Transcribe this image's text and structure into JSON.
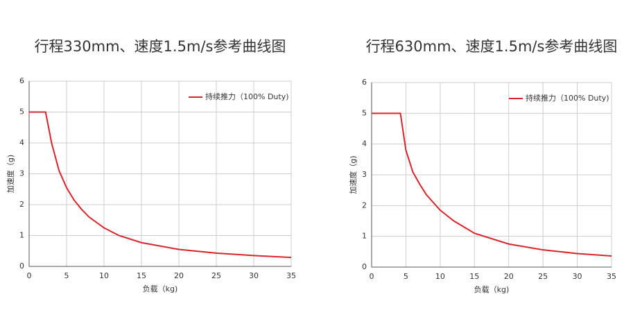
{
  "chart_data": [
    {
      "type": "line",
      "title": "行程330mm、速度1.5m/s参考曲线图",
      "x_label": "负载（kg)",
      "y_label": "加速度（g)",
      "x": [
        0,
        2.2,
        3,
        4,
        5,
        6,
        7,
        8,
        10,
        12,
        15,
        20,
        25,
        30,
        35
      ],
      "series": [
        {
          "name": "持续推力（100% Duty)",
          "color": "#d9232a",
          "values": [
            5,
            5,
            4.0,
            3.1,
            2.55,
            2.15,
            1.85,
            1.6,
            1.25,
            1.0,
            0.77,
            0.55,
            0.43,
            0.35,
            0.29
          ]
        }
      ],
      "xlim": [
        0,
        35
      ],
      "ylim": [
        0,
        6
      ],
      "xticks": [
        0,
        5,
        10,
        15,
        20,
        25,
        30,
        35
      ],
      "yticks": [
        0,
        1,
        2,
        3,
        4,
        5,
        6
      ],
      "grid": true,
      "legend": "upper right"
    },
    {
      "type": "line",
      "title": "行程630mm、速度1.5m/s参考曲线图",
      "x_label": "负载（kg)",
      "y_label": "加速度（g)",
      "x": [
        0,
        4.2,
        5,
        6,
        7,
        8,
        10,
        12,
        15,
        20,
        25,
        30,
        35
      ],
      "series": [
        {
          "name": "持续推力（100% Duty)",
          "color": "#d9232a",
          "values": [
            5,
            5,
            3.8,
            3.1,
            2.7,
            2.35,
            1.85,
            1.5,
            1.1,
            0.75,
            0.56,
            0.44,
            0.36
          ]
        }
      ],
      "xlim": [
        0,
        35
      ],
      "ylim": [
        0,
        6
      ],
      "xticks": [
        0,
        5,
        10,
        15,
        20,
        25,
        30,
        35
      ],
      "yticks": [
        0,
        1,
        2,
        3,
        4,
        5,
        6
      ],
      "grid": true,
      "legend": "upper right"
    }
  ]
}
